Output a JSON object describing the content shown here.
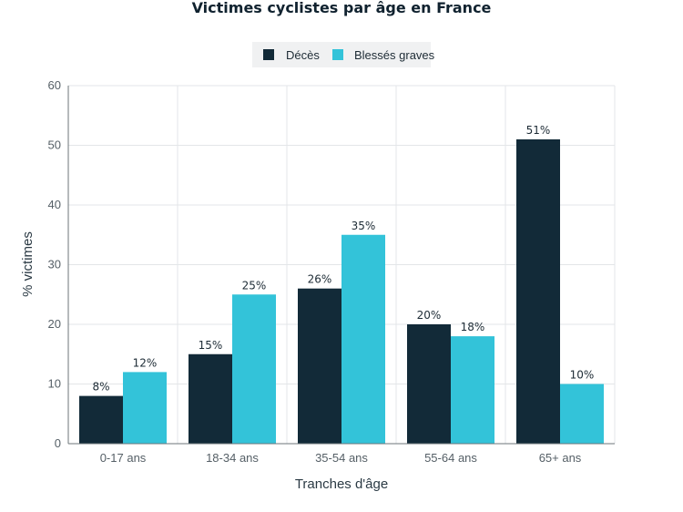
{
  "chart_data": {
    "type": "bar",
    "title": "Victimes cyclistes par âge en France",
    "xlabel": "Tranches d'âge",
    "ylabel": "% victimes",
    "categories": [
      "0-17 ans",
      "18-34 ans",
      "35-54 ans",
      "55-64 ans",
      "65+ ans"
    ],
    "series": [
      {
        "name": "Décès",
        "values": [
          8,
          15,
          26,
          20,
          51
        ],
        "color": "#122a38"
      },
      {
        "name": "Blessés graves",
        "values": [
          12,
          25,
          35,
          18,
          10
        ],
        "color": "#33c3d9"
      }
    ],
    "ylim": [
      0,
      60
    ],
    "yticks": [
      0,
      10,
      20,
      30,
      40,
      50,
      60
    ],
    "value_suffix": "%",
    "grid": true,
    "legend": "top-center"
  }
}
